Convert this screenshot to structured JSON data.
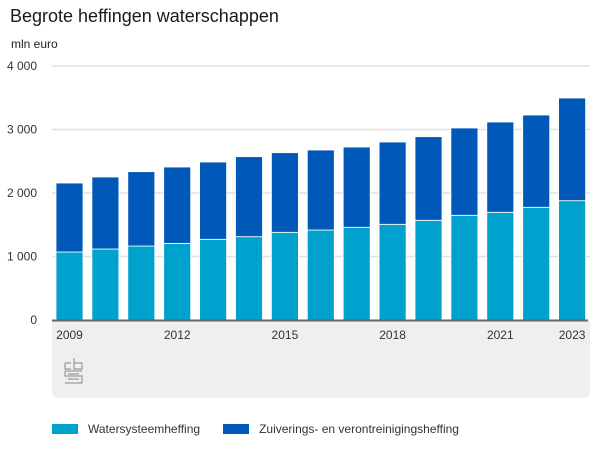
{
  "chart_data": {
    "type": "bar",
    "stacked": true,
    "title": "Begrote heffingen waterschappen",
    "ylabel": "mln euro",
    "xlabel": "",
    "ylim": [
      0,
      4000
    ],
    "yticks": [
      0,
      1000,
      2000,
      3000,
      4000
    ],
    "ytick_labels": [
      "0",
      "1 000",
      "2 000",
      "3 000",
      "4 000"
    ],
    "grid": true,
    "categories": [
      "2009",
      "2010",
      "2011",
      "2012",
      "2013",
      "2014",
      "2015",
      "2016",
      "2017",
      "2018",
      "2019",
      "2020",
      "2021",
      "2022",
      "2023"
    ],
    "xtick_labels": [
      {
        "category": "2009",
        "label": "2009"
      },
      {
        "category": "2012",
        "label": "2012"
      },
      {
        "category": "2015",
        "label": "2015"
      },
      {
        "category": "2018",
        "label": "2018"
      },
      {
        "category": "2021",
        "label": "2021"
      },
      {
        "category": "2023",
        "label": "2023"
      }
    ],
    "series": [
      {
        "name": "Watersysteemheffing",
        "color": "#00a1cd",
        "values": [
          1071,
          1118,
          1165,
          1207,
          1271,
          1312,
          1381,
          1417,
          1460,
          1507,
          1570,
          1649,
          1696,
          1775,
          1879
        ]
      },
      {
        "name": "Zuiverings- en verontreinigingsheffing",
        "color": "#0058b8",
        "values": [
          1086,
          1134,
          1171,
          1202,
          1217,
          1260,
          1254,
          1260,
          1264,
          1296,
          1317,
          1375,
          1422,
          1453,
          1617
        ]
      }
    ],
    "legend_position": "bottom-left"
  },
  "header": {
    "title": "Begrote heffingen waterschappen",
    "unit": "mln euro"
  },
  "legend": [
    {
      "label": "Watersysteemheffing",
      "color": "#00a1cd"
    },
    {
      "label": "Zuiverings- en verontreinigingsheffing",
      "color": "#0058b8"
    }
  ],
  "logo": {
    "icon": "cbs-logo-icon"
  }
}
